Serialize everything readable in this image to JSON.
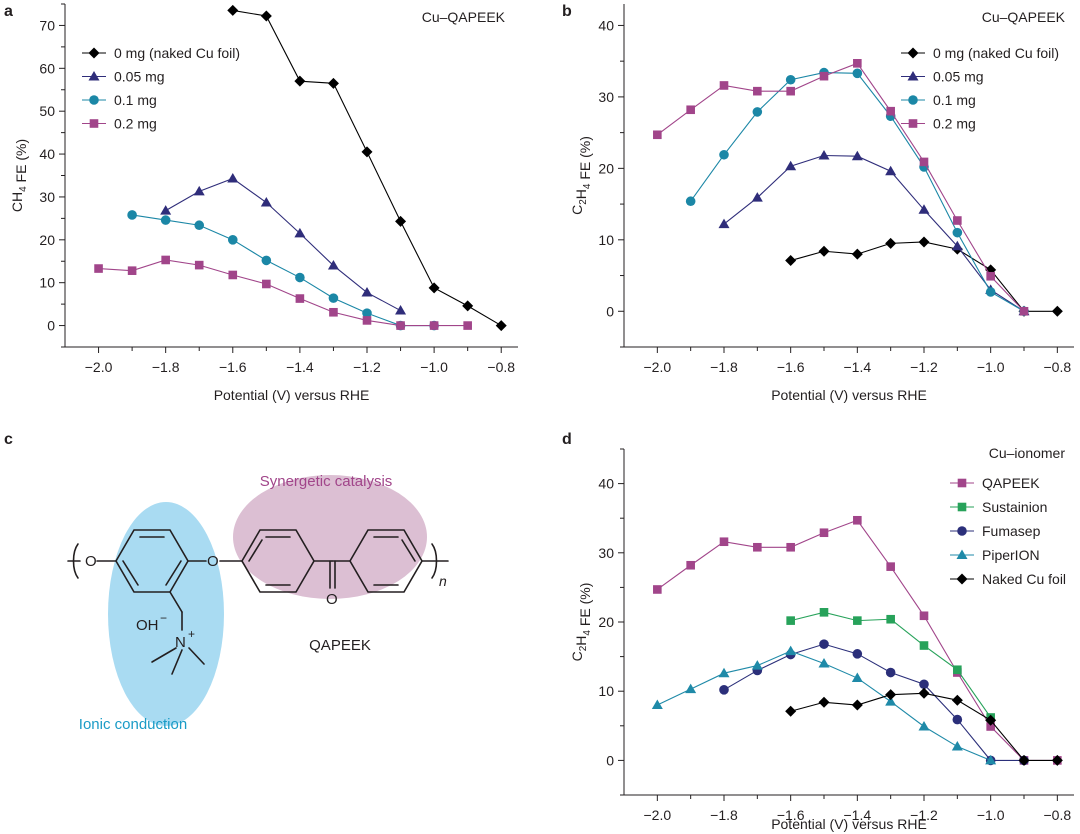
{
  "panels": {
    "a": {
      "letter": "a"
    },
    "b": {
      "letter": "b"
    },
    "c": {
      "letter": "c"
    },
    "d": {
      "letter": "d"
    }
  },
  "chart_data": [
    {
      "id": "a",
      "type": "line",
      "title": "Cu–QAPEEK",
      "xlabel": "Potential (V) versus RHE",
      "ylabel": {
        "pre": "CH",
        "sub": "4",
        "post": " FE (%)"
      },
      "xlim": [
        -2.1,
        -0.75
      ],
      "ylim": [
        -5,
        75
      ],
      "xticks": [
        -2.0,
        -1.8,
        -1.6,
        -1.4,
        -1.2,
        -1.0,
        -0.8
      ],
      "xtick_labels": [
        "−2.0",
        "−1.8",
        "−1.6",
        "−1.4",
        "−1.2",
        "−1.0",
        "−0.8"
      ],
      "yticks": [
        0,
        10,
        20,
        30,
        40,
        50,
        60,
        70
      ],
      "ytick_labels": [
        "0",
        "10",
        "20",
        "30",
        "40",
        "50",
        "60",
        "70"
      ],
      "series": [
        {
          "name": "0 mg (naked Cu foil)",
          "marker": "diamond",
          "color": "#000000",
          "x": [
            -1.6,
            -1.5,
            -1.4,
            -1.3,
            -1.2,
            -1.1,
            -1.0,
            -0.9,
            -0.8
          ],
          "y": [
            73.5,
            72.2,
            57,
            56.5,
            40.5,
            24.3,
            8.8,
            4.6,
            0
          ]
        },
        {
          "name": "0.05 mg",
          "marker": "triangle",
          "color": "#2f2d7a",
          "x": [
            -1.8,
            -1.7,
            -1.6,
            -1.5,
            -1.4,
            -1.3,
            -1.2,
            -1.1
          ],
          "y": [
            26.8,
            31.3,
            34.3,
            28.7,
            21.5,
            14.0,
            7.7,
            3.5
          ]
        },
        {
          "name": "0.1 mg",
          "marker": "circle",
          "color": "#1b87a6",
          "x": [
            -1.9,
            -1.8,
            -1.7,
            -1.6,
            -1.5,
            -1.4,
            -1.3,
            -1.2,
            -1.1,
            -1.0
          ],
          "y": [
            25.8,
            24.6,
            23.4,
            20.0,
            15.2,
            11.2,
            6.4,
            2.9,
            0,
            0
          ]
        },
        {
          "name": "0.2 mg",
          "marker": "square",
          "color": "#a1458a",
          "x": [
            -2.0,
            -1.9,
            -1.8,
            -1.7,
            -1.6,
            -1.5,
            -1.4,
            -1.3,
            -1.2,
            -1.1,
            -1.0,
            -0.9
          ],
          "y": [
            13.3,
            12.8,
            15.3,
            14.1,
            11.8,
            9.7,
            6.3,
            3.1,
            1.2,
            0,
            0,
            0
          ]
        }
      ]
    },
    {
      "id": "b",
      "type": "line",
      "title": "Cu–QAPEEK",
      "xlabel": "Potential (V) versus RHE",
      "ylabel": {
        "pre": "C",
        "sub": "2",
        "mid": "H",
        "sub2": "4",
        "post": " FE (%)"
      },
      "xlim": [
        -2.1,
        -0.75
      ],
      "ylim": [
        -5,
        43
      ],
      "xticks": [
        -2.0,
        -1.8,
        -1.6,
        -1.4,
        -1.2,
        -1.0,
        -0.8
      ],
      "xtick_labels": [
        "−2.0",
        "−1.8",
        "−1.6",
        "−1.4",
        "−1.2",
        "−1.0",
        "−0.8"
      ],
      "yticks": [
        0,
        10,
        20,
        30,
        40
      ],
      "ytick_labels": [
        "0",
        "10",
        "20",
        "30",
        "40"
      ],
      "series": [
        {
          "name": "0 mg (naked Cu foil)",
          "marker": "diamond",
          "color": "#000000",
          "x": [
            -1.6,
            -1.5,
            -1.4,
            -1.3,
            -1.2,
            -1.1,
            -1.0,
            -0.9,
            -0.8
          ],
          "y": [
            7.1,
            8.4,
            8.0,
            9.5,
            9.7,
            8.7,
            5.8,
            0,
            0
          ]
        },
        {
          "name": "0.05 mg",
          "marker": "triangle",
          "color": "#2f2d7a",
          "x": [
            -1.8,
            -1.7,
            -1.6,
            -1.5,
            -1.4,
            -1.3,
            -1.2,
            -1.1,
            -1.0,
            -0.9
          ],
          "y": [
            12.2,
            15.9,
            20.3,
            21.8,
            21.7,
            19.6,
            14.2,
            9.1,
            3.0,
            0
          ]
        },
        {
          "name": "0.1 mg",
          "marker": "circle",
          "color": "#1b87a6",
          "x": [
            -1.9,
            -1.8,
            -1.7,
            -1.6,
            -1.5,
            -1.4,
            -1.3,
            -1.2,
            -1.1,
            -1.0,
            -0.9
          ],
          "y": [
            15.4,
            21.9,
            27.9,
            32.4,
            33.4,
            33.3,
            27.3,
            20.2,
            11.0,
            2.7,
            0
          ]
        },
        {
          "name": "0.2 mg",
          "marker": "square",
          "color": "#a1458a",
          "x": [
            -2.0,
            -1.9,
            -1.8,
            -1.7,
            -1.6,
            -1.5,
            -1.4,
            -1.3,
            -1.2,
            -1.1,
            -1.0,
            -0.9
          ],
          "y": [
            24.7,
            28.2,
            31.6,
            30.8,
            30.8,
            32.9,
            34.7,
            28.0,
            20.9,
            12.7,
            4.9,
            0
          ]
        }
      ]
    },
    {
      "id": "d",
      "type": "line",
      "title": "Cu–ionomer",
      "xlabel": "Potential (V) versus RHE",
      "ylabel": {
        "pre": "C",
        "sub": "2",
        "mid": "H",
        "sub2": "4",
        "post": " FE (%)"
      },
      "xlim": [
        -2.1,
        -0.75
      ],
      "ylim": [
        -5,
        45
      ],
      "xticks": [
        -2.0,
        -1.8,
        -1.6,
        -1.4,
        -1.2,
        -1.0,
        -0.8
      ],
      "xtick_labels": [
        "−2.0",
        "−1.8",
        "−1.6",
        "−1.4",
        "−1.2",
        "−1.0",
        "−0.8"
      ],
      "yticks": [
        0,
        10,
        20,
        30,
        40
      ],
      "ytick_labels": [
        "0",
        "10",
        "20",
        "30",
        "40"
      ],
      "series": [
        {
          "name": "QAPEEK",
          "marker": "square",
          "color": "#a1458a",
          "x": [
            -2.0,
            -1.9,
            -1.8,
            -1.7,
            -1.6,
            -1.5,
            -1.4,
            -1.3,
            -1.2,
            -1.1,
            -1.0,
            -0.9,
            -0.8
          ],
          "y": [
            24.7,
            28.2,
            31.6,
            30.8,
            30.8,
            32.9,
            34.7,
            28.0,
            20.9,
            12.7,
            4.9,
            0,
            0
          ]
        },
        {
          "name": "Sustainion",
          "marker": "square",
          "color": "#27a25a",
          "x": [
            -1.6,
            -1.5,
            -1.4,
            -1.3,
            -1.2,
            -1.1,
            -1.0
          ],
          "y": [
            20.2,
            21.4,
            20.2,
            20.4,
            16.6,
            13.1,
            6.2
          ]
        },
        {
          "name": "Fumasep",
          "marker": "circle",
          "color": "#2b2f7a",
          "x": [
            -1.8,
            -1.7,
            -1.6,
            -1.5,
            -1.4,
            -1.3,
            -1.2,
            -1.1,
            -1.0,
            -0.9
          ],
          "y": [
            10.2,
            13.0,
            15.3,
            16.8,
            15.4,
            12.7,
            11.0,
            5.9,
            0,
            0
          ]
        },
        {
          "name": "PiperION",
          "marker": "triangle",
          "color": "#1f8aa8",
          "x": [
            -2.0,
            -1.9,
            -1.8,
            -1.7,
            -1.6,
            -1.5,
            -1.4,
            -1.3,
            -1.2,
            -1.1,
            -1.0
          ],
          "y": [
            8.0,
            10.3,
            12.6,
            13.7,
            15.8,
            14.0,
            11.9,
            8.5,
            4.9,
            2.0,
            0
          ]
        },
        {
          "name": "Naked Cu foil",
          "marker": "diamond",
          "color": "#000000",
          "x": [
            -1.6,
            -1.5,
            -1.4,
            -1.3,
            -1.2,
            -1.1,
            -1.0,
            -0.9,
            -0.8
          ],
          "y": [
            7.1,
            8.4,
            8.0,
            9.5,
            9.7,
            8.7,
            5.8,
            0,
            0
          ]
        }
      ]
    }
  ],
  "structure": {
    "label_synergetic": "Synergetic catalysis",
    "label_ionic": "Ionic conduction",
    "label_polymer": "QAPEEK",
    "atom_O": "O",
    "atom_N": "N",
    "charge_plus": "+",
    "hydroxide": "OH",
    "charge_minus": "−",
    "repeat_n": "n",
    "colors": {
      "synergetic_fill": "#dcbfd3",
      "ionic_fill": "#a9dbf2",
      "synergetic_text": "#a1458a",
      "ionic_text": "#1a9bc6"
    }
  }
}
